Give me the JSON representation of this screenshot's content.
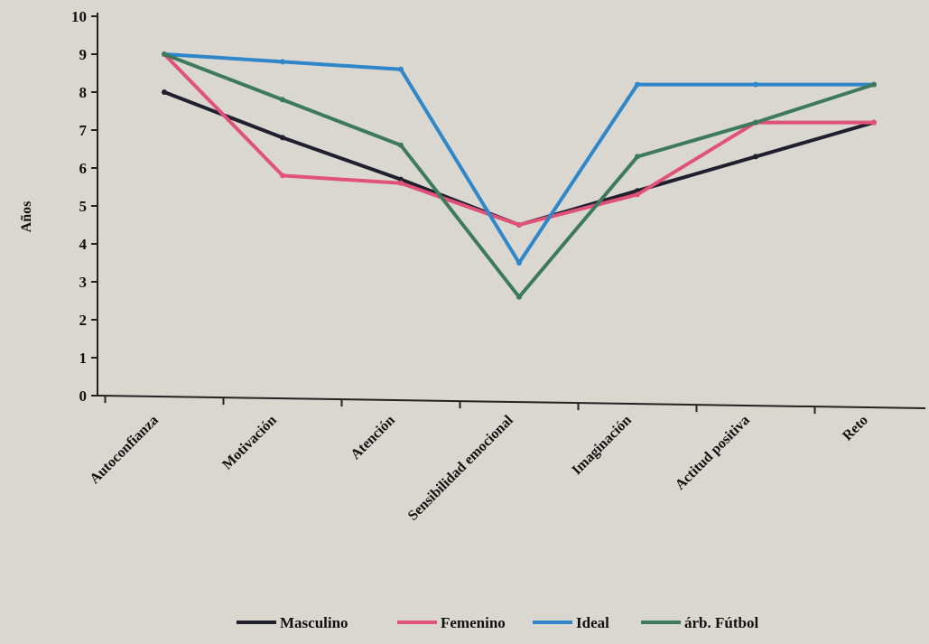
{
  "chart_data": {
    "type": "line",
    "title": "",
    "xlabel": "",
    "ylabel": "Años",
    "ylim": [
      0,
      10
    ],
    "yticks": [
      "0",
      "1",
      "2",
      "3",
      "4",
      "5",
      "6",
      "7",
      "8",
      "9",
      "10"
    ],
    "grid": false,
    "legend_position": "bottom",
    "categories": [
      "Autoconfianza",
      "Motivación",
      "Atención",
      "Sensibilidad emocional",
      "Imaginación",
      "Actitud positiva",
      "Reto"
    ],
    "series": [
      {
        "name": "Masculino",
        "color": "#1f1f2e",
        "values": [
          8.0,
          6.8,
          5.7,
          4.5,
          5.4,
          6.3,
          7.2
        ]
      },
      {
        "name": "Femenino",
        "color": "#e0527a",
        "values": [
          9.0,
          5.8,
          5.6,
          4.5,
          5.3,
          7.2,
          7.2
        ]
      },
      {
        "name": "Ideal",
        "color": "#2f86c8",
        "values": [
          9.0,
          8.8,
          8.6,
          3.5,
          8.2,
          8.2,
          8.2
        ]
      },
      {
        "name": "árb. Fútbol",
        "color": "#3d7a5c",
        "values": [
          9.0,
          7.8,
          6.6,
          2.6,
          6.3,
          7.2,
          8.2
        ]
      }
    ]
  }
}
